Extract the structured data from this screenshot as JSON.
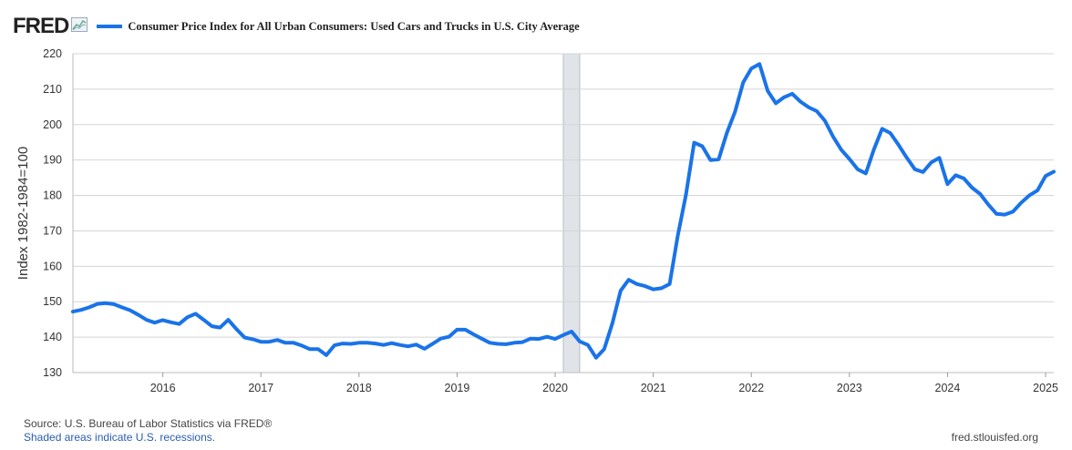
{
  "header": {
    "logo_text": "FRED",
    "logo_icon": "chart-line-icon",
    "series_title": "Consumer Price Index for All Urban Consumers: Used Cars and Trucks in U.S. City Average"
  },
  "footer": {
    "source": "Source: U.S. Bureau of Labor Statistics via FRED®",
    "recession_note": "Shaded areas indicate U.S. recessions.",
    "site": "fred.stlouisfed.org"
  },
  "colors": {
    "line": "#1a73e8",
    "recession": "#e0e4e8",
    "grid": "#d4d4d4"
  },
  "chart_data": {
    "type": "line",
    "title": "Consumer Price Index for All Urban Consumers: Used Cars and Trucks in U.S. City Average",
    "xlabel": "",
    "ylabel": "Index 1982-1984=100",
    "ylim": [
      130,
      220
    ],
    "yticks": [
      130,
      140,
      150,
      160,
      170,
      180,
      190,
      200,
      210,
      220
    ],
    "xlim": [
      "2015-02",
      "2025-02"
    ],
    "xticks": [
      "2016",
      "2017",
      "2018",
      "2019",
      "2020",
      "2021",
      "2022",
      "2023",
      "2024",
      "2025"
    ],
    "grid": true,
    "legend": "top-left",
    "recessions": [
      {
        "start": "2020-02",
        "end": "2020-04"
      }
    ],
    "series": [
      {
        "name": "Consumer Price Index for All Urban Consumers: Used Cars and Trucks in U.S. City Average",
        "start": "2015-02",
        "frequency": "monthly",
        "values": [
          147.2,
          147.7,
          148.4,
          149.4,
          149.6,
          149.3,
          148.4,
          147.6,
          146.3,
          144.9,
          144.1,
          144.8,
          144.2,
          143.7,
          145.6,
          146.6,
          144.9,
          143.1,
          142.7,
          144.9,
          142.3,
          139.9,
          139.4,
          138.7,
          138.7,
          139.2,
          138.4,
          138.4,
          137.6,
          136.6,
          136.6,
          134.9,
          137.7,
          138.2,
          138.1,
          138.4,
          138.4,
          138.2,
          137.8,
          138.3,
          137.8,
          137.4,
          137.9,
          136.7,
          138.1,
          139.6,
          140.1,
          142.1,
          142.1,
          140.8,
          139.6,
          138.4,
          138.1,
          138.0,
          138.4,
          138.6,
          139.6,
          139.5,
          140.1,
          139.5,
          140.6,
          141.6,
          138.8,
          137.8,
          134.2,
          136.6,
          143.9,
          153.1,
          156.2,
          155.0,
          154.4,
          153.5,
          153.8,
          155.0,
          168.6,
          180.2,
          194.9,
          193.9,
          190.0,
          190.2,
          197.6,
          203.6,
          211.9,
          215.8,
          217.1,
          209.5,
          206.0,
          207.7,
          208.7,
          206.5,
          204.9,
          203.8,
          201.1,
          196.6,
          192.9,
          190.3,
          187.4,
          186.2,
          193.0,
          198.8,
          197.6,
          194.3,
          190.7,
          187.4,
          186.6,
          189.3,
          190.6,
          183.2,
          185.7,
          184.8,
          182.2,
          180.4,
          177.4,
          174.8,
          174.6,
          175.4,
          177.9,
          180.0,
          181.4,
          185.5,
          186.7
        ]
      }
    ]
  }
}
